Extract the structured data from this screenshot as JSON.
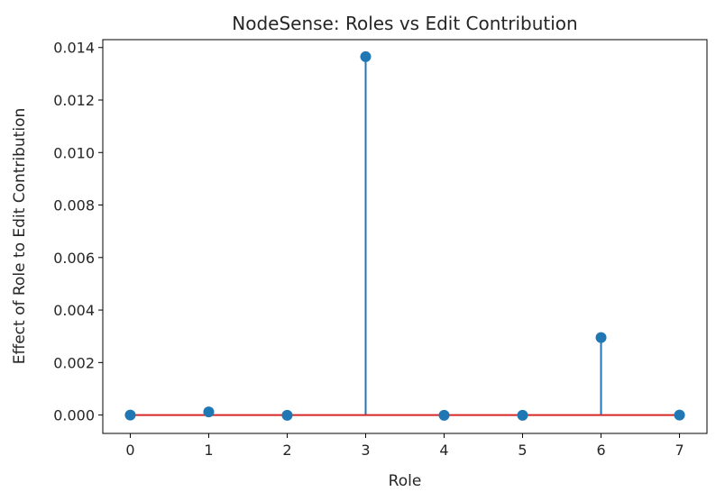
{
  "chart_data": {
    "type": "stem",
    "title": "NodeSense: Roles vs Edit Contribution",
    "xlabel": "Role",
    "ylabel": "Effect of Role to Edit Contribution",
    "x": [
      0,
      1,
      2,
      3,
      4,
      5,
      6,
      7
    ],
    "y": [
      0.0,
      0.00012,
      -1e-05,
      0.01365,
      -1e-05,
      -1e-05,
      0.00295,
      0.0
    ],
    "xlim": [
      -0.35,
      7.35
    ],
    "ylim": [
      -0.0007,
      0.0143
    ],
    "xticks": [
      "0",
      "1",
      "2",
      "3",
      "4",
      "5",
      "6",
      "7"
    ],
    "yticks": [
      "0.000",
      "0.002",
      "0.004",
      "0.006",
      "0.008",
      "0.010",
      "0.012",
      "0.014"
    ],
    "grid": false,
    "colors": {
      "stem": "#1f77b4",
      "marker": "#1f77b4",
      "baseline": "#d62728"
    }
  }
}
